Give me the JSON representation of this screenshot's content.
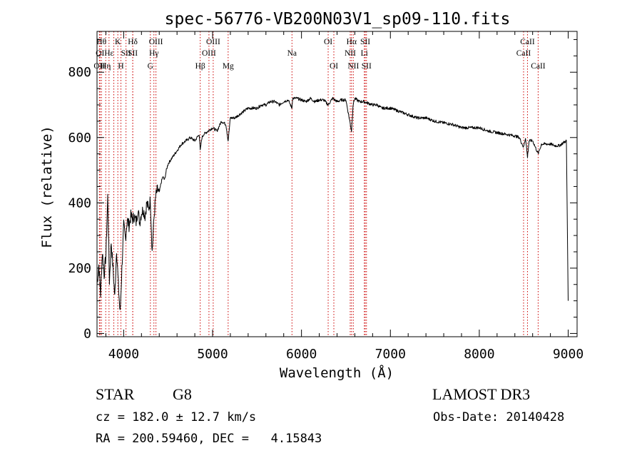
{
  "chart_data": {
    "type": "line",
    "title": "spec-56776-VB200N03V1_sp09-110.fits",
    "xlabel": "Wavelength (Å)",
    "ylabel": "Flux (relative)",
    "xlim": [
      3700,
      9100
    ],
    "ylim": [
      -10,
      925
    ],
    "x_ticks": [
      4000,
      5000,
      6000,
      7000,
      8000,
      9000
    ],
    "x_tick_labels": [
      "4000",
      "5000",
      "6000",
      "7000",
      "8000",
      "9000"
    ],
    "y_ticks": [
      0,
      200,
      400,
      600,
      800
    ],
    "y_tick_labels": [
      "0",
      "200",
      "400",
      "600",
      "800"
    ],
    "grid": false,
    "line_color": "#000000",
    "marker_color": "#cc0000",
    "series": [
      {
        "name": "flux",
        "x": [
          3700,
          3720,
          3740,
          3760,
          3780,
          3800,
          3820,
          3840,
          3860,
          3880,
          3900,
          3920,
          3940,
          3960,
          3980,
          4000,
          4020,
          4040,
          4060,
          4080,
          4100,
          4120,
          4140,
          4160,
          4180,
          4200,
          4220,
          4240,
          4260,
          4280,
          4300,
          4320,
          4340,
          4360,
          4380,
          4400,
          4420,
          4440,
          4460,
          4480,
          4500,
          4550,
          4600,
          4650,
          4700,
          4750,
          4800,
          4850,
          4861,
          4880,
          4900,
          4950,
          5000,
          5050,
          5100,
          5150,
          5175,
          5200,
          5250,
          5300,
          5350,
          5400,
          5450,
          5500,
          5550,
          5600,
          5650,
          5700,
          5750,
          5800,
          5850,
          5893,
          5900,
          5950,
          6000,
          6050,
          6100,
          6150,
          6200,
          6250,
          6300,
          6350,
          6400,
          6450,
          6500,
          6563,
          6580,
          6600,
          6650,
          6700,
          6750,
          6800,
          6850,
          6900,
          6950,
          7000,
          7100,
          7200,
          7300,
          7400,
          7500,
          7600,
          7700,
          7800,
          7900,
          8000,
          8100,
          8200,
          8300,
          8400,
          8450,
          8498,
          8520,
          8542,
          8560,
          8600,
          8662,
          8700,
          8750,
          8800,
          8850,
          8900,
          8950,
          8980,
          9000
        ],
        "values": [
          150,
          210,
          120,
          250,
          180,
          240,
          420,
          160,
          280,
          200,
          110,
          260,
          150,
          60,
          200,
          330,
          290,
          350,
          330,
          360,
          350,
          360,
          340,
          380,
          340,
          370,
          380,
          360,
          400,
          380,
          410,
          250,
          350,
          420,
          440,
          430,
          460,
          480,
          470,
          500,
          520,
          540,
          560,
          580,
          590,
          600,
          590,
          610,
          560,
          600,
          610,
          620,
          630,
          620,
          650,
          640,
          590,
          660,
          660,
          670,
          680,
          690,
          690,
          690,
          700,
          700,
          710,
          710,
          700,
          710,
          715,
          690,
          720,
          720,
          715,
          710,
          720,
          710,
          715,
          715,
          700,
          720,
          710,
          715,
          715,
          620,
          700,
          720,
          710,
          710,
          705,
          700,
          700,
          690,
          690,
          690,
          680,
          670,
          660,
          660,
          650,
          645,
          640,
          630,
          630,
          630,
          620,
          615,
          610,
          605,
          600,
          570,
          600,
          540,
          590,
          590,
          550,
          580,
          580,
          580,
          575,
          575,
          585,
          590,
          100
        ]
      }
    ],
    "line_markers": [
      {
        "x": 3727,
        "label": "OII",
        "row": 3
      },
      {
        "x": 3734,
        "label": "OI",
        "row": 2
      },
      {
        "x": 3750,
        "label": "Hθ",
        "row": 1
      },
      {
        "x": 3798,
        "label": "Hη",
        "row": 3
      },
      {
        "x": 3835,
        "label": "Hε",
        "row": 2
      },
      {
        "x": 3889,
        "label": "",
        "row": 0
      },
      {
        "x": 3934,
        "label": "K",
        "row": 1
      },
      {
        "x": 3969,
        "label": "H",
        "row": 3
      },
      {
        "x": 4026,
        "label": "SII",
        "row": 2
      },
      {
        "x": 4102,
        "label": "Hδ",
        "row": 1
      },
      {
        "x": 4102,
        "label": "SII",
        "row": 2
      },
      {
        "x": 4300,
        "label": "G",
        "row": 3
      },
      {
        "x": 4340,
        "label": "Hγ",
        "row": 2
      },
      {
        "x": 4363,
        "label": "OIII",
        "row": 1
      },
      {
        "x": 4861,
        "label": "Hβ",
        "row": 3
      },
      {
        "x": 4959,
        "label": "OIII",
        "row": 2
      },
      {
        "x": 5007,
        "label": "OIII",
        "row": 1
      },
      {
        "x": 5175,
        "label": "Mg",
        "row": 3
      },
      {
        "x": 5893,
        "label": "Na",
        "row": 2
      },
      {
        "x": 6300,
        "label": "OI",
        "row": 1
      },
      {
        "x": 6364,
        "label": "OI",
        "row": 3
      },
      {
        "x": 6548,
        "label": "NII",
        "row": 2
      },
      {
        "x": 6563,
        "label": "Hα",
        "row": 1
      },
      {
        "x": 6583,
        "label": "NII",
        "row": 3
      },
      {
        "x": 6707,
        "label": "Li",
        "row": 2
      },
      {
        "x": 6717,
        "label": "SII",
        "row": 1
      },
      {
        "x": 6731,
        "label": "SII",
        "row": 3
      },
      {
        "x": 8498,
        "label": "CaII",
        "row": 2
      },
      {
        "x": 8542,
        "label": "CaII",
        "row": 1
      },
      {
        "x": 8662,
        "label": "CaII",
        "row": 3
      }
    ]
  },
  "footer": {
    "object_class": "STAR",
    "subclass": "G8",
    "survey": "LAMOST DR3",
    "velocity": "cz = 182.0 ± 12.7 km/s",
    "obs_date": "Obs-Date: 20140428",
    "coords": "RA = 200.59460, DEC =   4.15843"
  }
}
